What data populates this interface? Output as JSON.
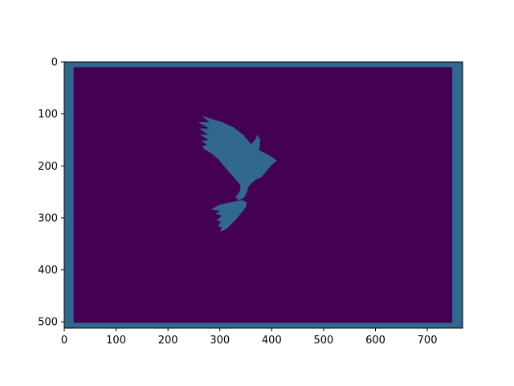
{
  "chart_data": {
    "type": "heatmap",
    "title": "",
    "xlabel": "",
    "ylabel": "",
    "xlim": [
      0,
      768
    ],
    "ylim": [
      512,
      0
    ],
    "x_ticks": [
      0,
      100,
      200,
      300,
      400,
      500,
      600,
      700
    ],
    "y_ticks": [
      0,
      100,
      200,
      300,
      400,
      500
    ],
    "grid": false,
    "legend": "none",
    "colors": {
      "background_class": "#440154",
      "foreground_class": "#31688e"
    },
    "regions": {
      "frame": {
        "value": 1,
        "outer": [
          0,
          0,
          768,
          512
        ],
        "inner": [
          18,
          10,
          748,
          502
        ]
      },
      "bird": {
        "value": 1,
        "silhouette": [
          [
            265,
            103
          ],
          [
            285,
            110
          ],
          [
            300,
            114
          ],
          [
            325,
            125
          ],
          [
            345,
            140
          ],
          [
            360,
            158
          ],
          [
            368,
            150
          ],
          [
            372,
            140
          ],
          [
            378,
            150
          ],
          [
            376,
            170
          ],
          [
            392,
            178
          ],
          [
            402,
            184
          ],
          [
            410,
            190
          ],
          [
            400,
            198
          ],
          [
            388,
            212
          ],
          [
            380,
            222
          ],
          [
            370,
            226
          ],
          [
            362,
            232
          ],
          [
            355,
            240
          ],
          [
            352,
            252
          ],
          [
            346,
            262
          ],
          [
            336,
            266
          ],
          [
            330,
            260
          ],
          [
            338,
            250
          ],
          [
            340,
            238
          ],
          [
            330,
            225
          ],
          [
            318,
            212
          ],
          [
            306,
            198
          ],
          [
            296,
            186
          ],
          [
            284,
            176
          ],
          [
            270,
            168
          ],
          [
            266,
            162
          ],
          [
            276,
            160
          ],
          [
            264,
            152
          ],
          [
            278,
            150
          ],
          [
            262,
            140
          ],
          [
            278,
            140
          ],
          [
            260,
            128
          ],
          [
            280,
            128
          ],
          [
            258,
            116
          ],
          [
            280,
            116
          ]
        ]
      },
      "prey": {
        "value": 1,
        "silhouette": [
          [
            330,
            268
          ],
          [
            344,
            266
          ],
          [
            352,
            270
          ],
          [
            350,
            280
          ],
          [
            340,
            292
          ],
          [
            332,
            302
          ],
          [
            322,
            312
          ],
          [
            312,
            322
          ],
          [
            300,
            326
          ],
          [
            304,
            318
          ],
          [
            296,
            316
          ],
          [
            302,
            308
          ],
          [
            294,
            304
          ],
          [
            304,
            296
          ],
          [
            292,
            292
          ],
          [
            300,
            286
          ],
          [
            284,
            284
          ],
          [
            296,
            276
          ],
          [
            312,
            272
          ]
        ]
      }
    }
  }
}
